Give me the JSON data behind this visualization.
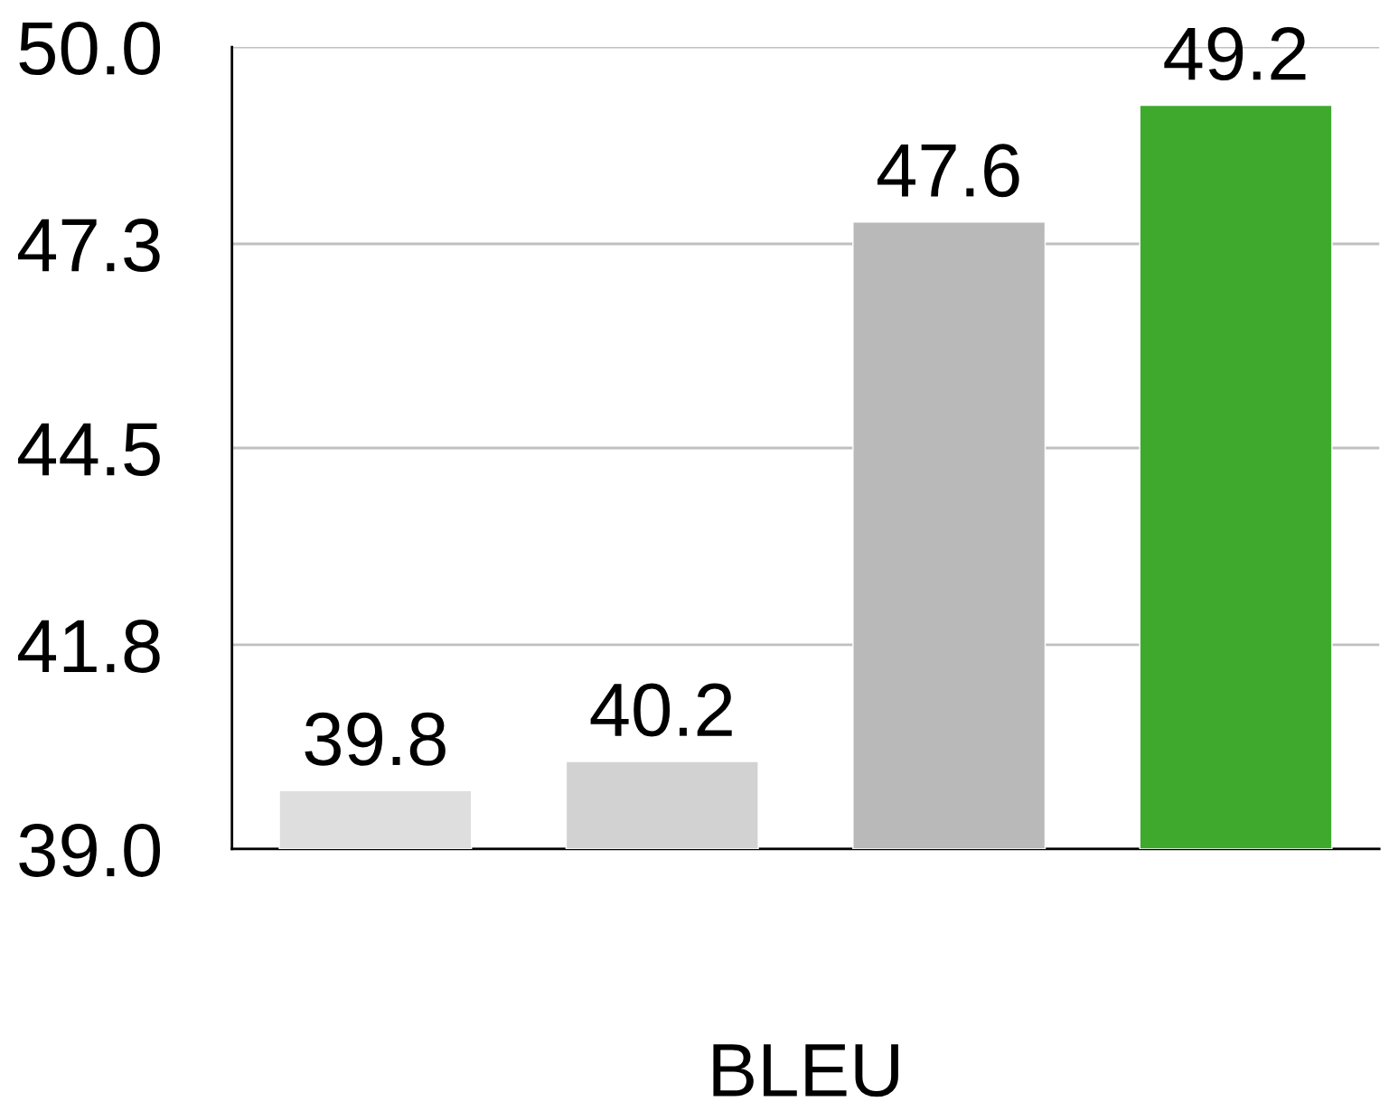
{
  "chart_data": {
    "type": "bar",
    "xlabel": "BLEU",
    "categories": [
      null,
      null,
      null,
      null
    ],
    "values": [
      39.8,
      40.2,
      47.6,
      49.2
    ],
    "colors": [
      "#dedede",
      "#d2d2d2",
      "#b9b9b9",
      "#3fa92e"
    ],
    "ylim": [
      39.0,
      50.0
    ],
    "yticks": [
      {
        "value": 39.0,
        "label": "39.0"
      },
      41.8,
      44.5,
      47.3,
      {
        "value": 50.0,
        "label": "50.0"
      }
    ],
    "grid": "y",
    "data_labels": true
  }
}
